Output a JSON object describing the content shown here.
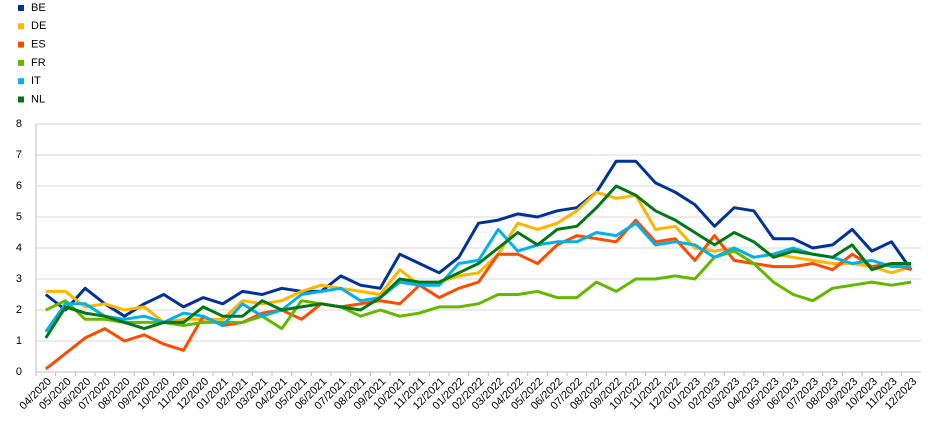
{
  "chart_data": {
    "type": "line",
    "categories": [
      "04/2020",
      "05/2020",
      "06/2020",
      "07/2020",
      "08/2020",
      "09/2020",
      "10/2020",
      "11/2020",
      "12/2020",
      "01/2021",
      "02/2021",
      "03/2021",
      "04/2021",
      "05/2021",
      "06/2021",
      "07/2021",
      "08/2021",
      "09/2021",
      "10/2021",
      "11/2021",
      "12/2021",
      "01/2022",
      "02/2022",
      "03/2022",
      "04/2022",
      "05/2022",
      "06/2022",
      "07/2022",
      "08/2022",
      "09/2022",
      "10/2022",
      "11/2022",
      "12/2022",
      "01/2023",
      "02/2023",
      "03/2023",
      "04/2023",
      "05/2023",
      "06/2023",
      "07/2023",
      "08/2023",
      "09/2023",
      "10/2023",
      "11/2023",
      "12/2023"
    ],
    "series": [
      {
        "name": "BE",
        "color": "#003299",
        "values": [
          2.5,
          2.0,
          2.7,
          2.2,
          1.8,
          2.2,
          2.5,
          2.1,
          2.4,
          2.2,
          2.6,
          2.5,
          2.7,
          2.6,
          2.6,
          3.1,
          2.8,
          2.7,
          3.8,
          3.5,
          3.2,
          3.7,
          4.8,
          4.9,
          5.1,
          5.0,
          5.2,
          5.3,
          5.8,
          6.8,
          6.8,
          6.1,
          5.8,
          5.4,
          4.7,
          5.3,
          5.2,
          4.3,
          4.3,
          4.0,
          4.1,
          4.6,
          3.9,
          4.2,
          3.3
        ]
      },
      {
        "name": "DE",
        "color": "#ffb400",
        "values": [
          2.6,
          2.6,
          2.1,
          2.2,
          2.0,
          2.1,
          1.6,
          1.7,
          1.7,
          1.7,
          2.3,
          2.2,
          2.3,
          2.6,
          2.8,
          2.7,
          2.6,
          2.5,
          3.3,
          2.8,
          2.9,
          3.1,
          3.2,
          3.8,
          4.8,
          4.6,
          4.8,
          5.2,
          5.8,
          5.6,
          5.7,
          4.6,
          4.7,
          4.0,
          3.9,
          4.0,
          3.7,
          3.8,
          3.7,
          3.6,
          3.5,
          3.5,
          3.4,
          3.2,
          3.4
        ]
      },
      {
        "name": "ES",
        "color": "#ff4b00",
        "values": [
          0.1,
          0.6,
          1.1,
          1.4,
          1.0,
          1.2,
          0.9,
          0.7,
          1.8,
          1.5,
          1.6,
          1.9,
          2.0,
          1.7,
          2.2,
          2.1,
          2.2,
          2.3,
          2.2,
          2.8,
          2.4,
          2.7,
          2.9,
          3.8,
          3.8,
          3.5,
          4.1,
          4.4,
          4.3,
          4.2,
          4.9,
          4.2,
          4.3,
          3.6,
          4.4,
          3.6,
          3.5,
          3.4,
          3.4,
          3.5,
          3.3,
          3.8,
          3.4,
          3.5,
          3.3
        ]
      },
      {
        "name": "FR",
        "color": "#65b800",
        "values": [
          2.0,
          2.3,
          1.7,
          1.7,
          1.6,
          1.6,
          1.6,
          1.5,
          1.6,
          1.6,
          1.6,
          1.8,
          1.4,
          2.3,
          2.2,
          2.1,
          1.8,
          2.0,
          1.8,
          1.9,
          2.1,
          2.1,
          2.2,
          2.5,
          2.5,
          2.6,
          2.4,
          2.4,
          2.9,
          2.6,
          3.0,
          3.0,
          3.1,
          3.0,
          3.7,
          3.9,
          3.5,
          2.9,
          2.5,
          2.3,
          2.7,
          2.8,
          2.9,
          2.8,
          2.9
        ]
      },
      {
        "name": "IT",
        "color": "#00b1ea",
        "values": [
          1.3,
          2.2,
          2.2,
          1.8,
          1.7,
          1.8,
          1.6,
          1.9,
          1.8,
          1.5,
          2.2,
          1.8,
          2.0,
          2.5,
          2.6,
          2.7,
          2.3,
          2.4,
          2.9,
          2.8,
          2.8,
          3.5,
          3.6,
          4.6,
          3.9,
          4.1,
          4.2,
          4.2,
          4.5,
          4.4,
          4.8,
          4.1,
          4.2,
          4.1,
          3.7,
          4.0,
          3.7,
          3.8,
          4.0,
          3.8,
          3.7,
          3.5,
          3.6,
          3.4,
          3.4
        ]
      },
      {
        "name": "NL",
        "color": "#007816",
        "values": [
          1.1,
          2.1,
          1.9,
          1.8,
          1.6,
          1.4,
          1.6,
          1.6,
          2.1,
          1.8,
          1.8,
          2.3,
          2.0,
          2.1,
          2.2,
          2.1,
          2.0,
          2.4,
          3.0,
          2.9,
          2.9,
          3.2,
          3.5,
          4.0,
          4.5,
          4.1,
          4.6,
          4.7,
          5.3,
          6.0,
          5.7,
          5.2,
          4.9,
          4.5,
          4.1,
          4.5,
          4.2,
          3.7,
          3.9,
          3.8,
          3.7,
          4.1,
          3.3,
          3.5,
          3.5
        ]
      }
    ],
    "ylim": [
      0,
      8
    ],
    "yticks": [
      0,
      1,
      2,
      3,
      4,
      5,
      6,
      7,
      8
    ],
    "grid": true,
    "legend": "top-left"
  }
}
